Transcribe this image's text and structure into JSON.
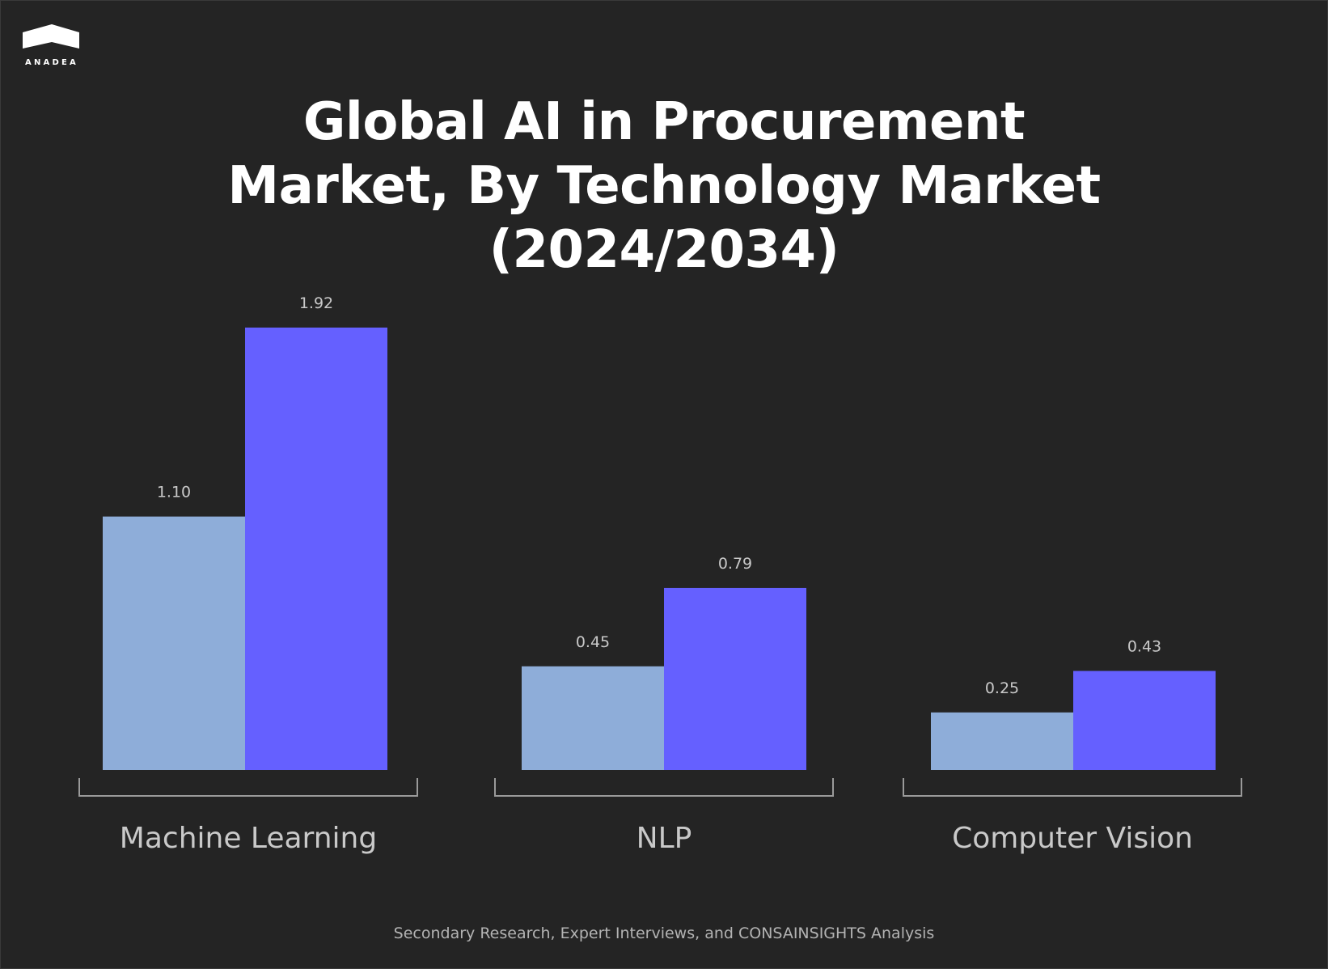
{
  "brand": {
    "logo_text": "ANADEA"
  },
  "title_lines": [
    "Global AI in Procurement",
    "Market, By Technology Market",
    "(2024/2034)"
  ],
  "source": "Secondary Research, Expert Interviews, and CONSAINSIGHTS Analysis",
  "colors": {
    "background": "#242424",
    "series_2024": "#8eadd9",
    "series_2034": "#6560ff",
    "text": "#ffffff",
    "muted_text": "#b3b3b3",
    "bracket": "#9a9a9a"
  },
  "chart_data": {
    "type": "bar",
    "title": "Global AI in Procurement Market, By Technology Market (2024/2034)",
    "xlabel": "",
    "ylabel": "",
    "ylim": [
      0,
      2.0
    ],
    "grid": false,
    "categories": [
      "Machine Learning",
      "NLP",
      "Computer Vision"
    ],
    "series": [
      {
        "values": [
          1.1,
          0.45,
          0.25
        ],
        "labels": [
          "1.10",
          "0.45",
          "0.25"
        ],
        "color": "#8eadd9"
      },
      {
        "values": [
          1.92,
          0.79,
          0.43
        ],
        "labels": [
          "1.92",
          "0.79",
          "0.43"
        ],
        "color": "#6560ff"
      }
    ]
  }
}
